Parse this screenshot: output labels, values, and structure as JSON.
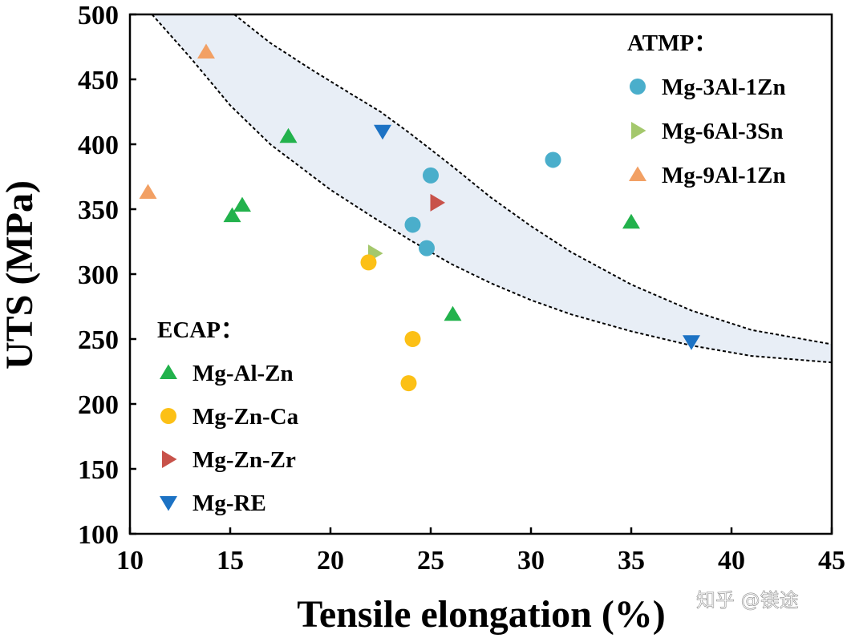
{
  "chart_data": {
    "type": "scatter",
    "title": "",
    "xlabel": "Tensile elongation (%)",
    "ylabel": "UTS (MPa)",
    "xlim": [
      10,
      45
    ],
    "ylim": [
      100,
      500
    ],
    "xticks": [
      10,
      15,
      20,
      25,
      30,
      35,
      40,
      45
    ],
    "yticks": [
      100,
      150,
      200,
      250,
      300,
      350,
      400,
      450,
      500
    ],
    "grid": false,
    "shaded_band": {
      "color": "#e8eef6",
      "upper_boundary": [
        [
          11.1,
          500
        ],
        [
          13,
          467
        ],
        [
          15,
          430
        ],
        [
          17,
          400
        ],
        [
          20,
          365
        ],
        [
          22,
          345
        ],
        [
          24,
          326
        ],
        [
          26,
          308
        ],
        [
          28,
          293
        ],
        [
          30,
          280
        ],
        [
          32,
          269
        ],
        [
          35,
          256
        ],
        [
          38,
          245
        ],
        [
          41,
          237
        ],
        [
          45,
          232
        ]
      ],
      "lower_boundary": [
        [
          15.2,
          500
        ],
        [
          17,
          478
        ],
        [
          19,
          458
        ],
        [
          21,
          439
        ],
        [
          22.5,
          425
        ],
        [
          24,
          408
        ],
        [
          26,
          384
        ],
        [
          28,
          359
        ],
        [
          30,
          337
        ],
        [
          32,
          317
        ],
        [
          35,
          292
        ],
        [
          38,
          272
        ],
        [
          41,
          257
        ],
        [
          45,
          246
        ]
      ]
    },
    "legend_groups": [
      {
        "title": "ATMP：",
        "placement": "top-right",
        "series_indices": [
          0,
          1,
          2
        ]
      },
      {
        "title": "ECAP：",
        "placement": "bottom-left",
        "series_indices": [
          3,
          4,
          5,
          6
        ]
      }
    ],
    "series": [
      {
        "name": "Mg-3Al-1Zn",
        "marker": "circle",
        "color": "#4aaecb",
        "points": [
          [
            25,
            376
          ],
          [
            24.1,
            338
          ],
          [
            24.8,
            320
          ],
          [
            31.1,
            388
          ]
        ]
      },
      {
        "name": "Mg-6Al-3Sn",
        "marker": "triangle-right",
        "color": "#a4c86c",
        "points": [
          [
            22.2,
            316
          ]
        ]
      },
      {
        "name": "Mg-9Al-1Zn",
        "marker": "triangle-up",
        "color": "#f2a064",
        "points": [
          [
            13.8,
            471
          ],
          [
            10.9,
            363
          ]
        ]
      },
      {
        "name": "Mg-Al-Zn",
        "marker": "triangle-up",
        "color": "#22b24c",
        "points": [
          [
            17.9,
            406
          ],
          [
            15.6,
            353
          ],
          [
            15.1,
            345
          ],
          [
            26.1,
            269
          ],
          [
            35,
            340
          ]
        ]
      },
      {
        "name": "Mg-Zn-Ca",
        "marker": "circle",
        "color": "#fcc016",
        "points": [
          [
            21.9,
            309
          ],
          [
            24.1,
            250
          ],
          [
            23.9,
            216
          ]
        ]
      },
      {
        "name": "Mg-Zn-Zr",
        "marker": "triangle-right",
        "color": "#c8524a",
        "points": [
          [
            25.3,
            355
          ]
        ]
      },
      {
        "name": "Mg-RE",
        "marker": "triangle-down",
        "color": "#1c72c4",
        "points": [
          [
            22.6,
            410
          ],
          [
            38,
            248
          ]
        ]
      }
    ]
  },
  "watermark": {
    "text": "知乎 @镁途"
  }
}
